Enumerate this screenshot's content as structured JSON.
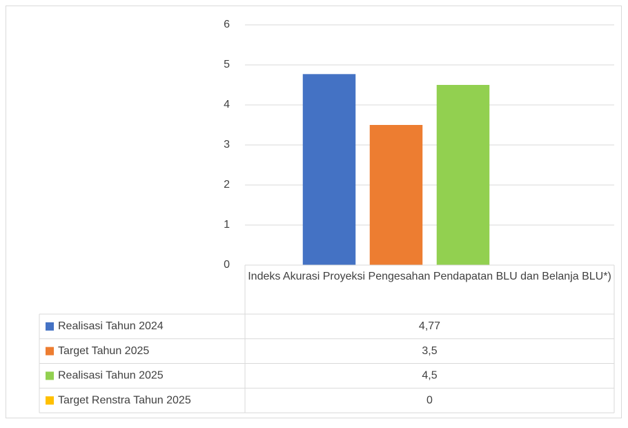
{
  "chart_data": {
    "type": "bar",
    "categories": [
      "Indeks Akurasi Proyeksi Pengesahan Pendapatan BLU dan Belanja BLU*)"
    ],
    "series": [
      {
        "name": "Realisasi Tahun 2024",
        "color": "#4472c4",
        "values": [
          4.77
        ],
        "value_labels": [
          "4,77"
        ]
      },
      {
        "name": "Target Tahun 2025",
        "color": "#ed7d31",
        "values": [
          3.5
        ],
        "value_labels": [
          "3,5"
        ]
      },
      {
        "name": "Realisasi Tahun 2025",
        "color": "#92d050",
        "values": [
          4.5
        ],
        "value_labels": [
          "4,5"
        ]
      },
      {
        "name": "Target Renstra Tahun 2025",
        "color": "#ffc000",
        "values": [
          0
        ],
        "value_labels": [
          "0"
        ]
      }
    ],
    "ylim": [
      0,
      6
    ],
    "yticks": [
      0,
      1,
      2,
      3,
      4,
      5,
      6
    ],
    "grid": true
  }
}
